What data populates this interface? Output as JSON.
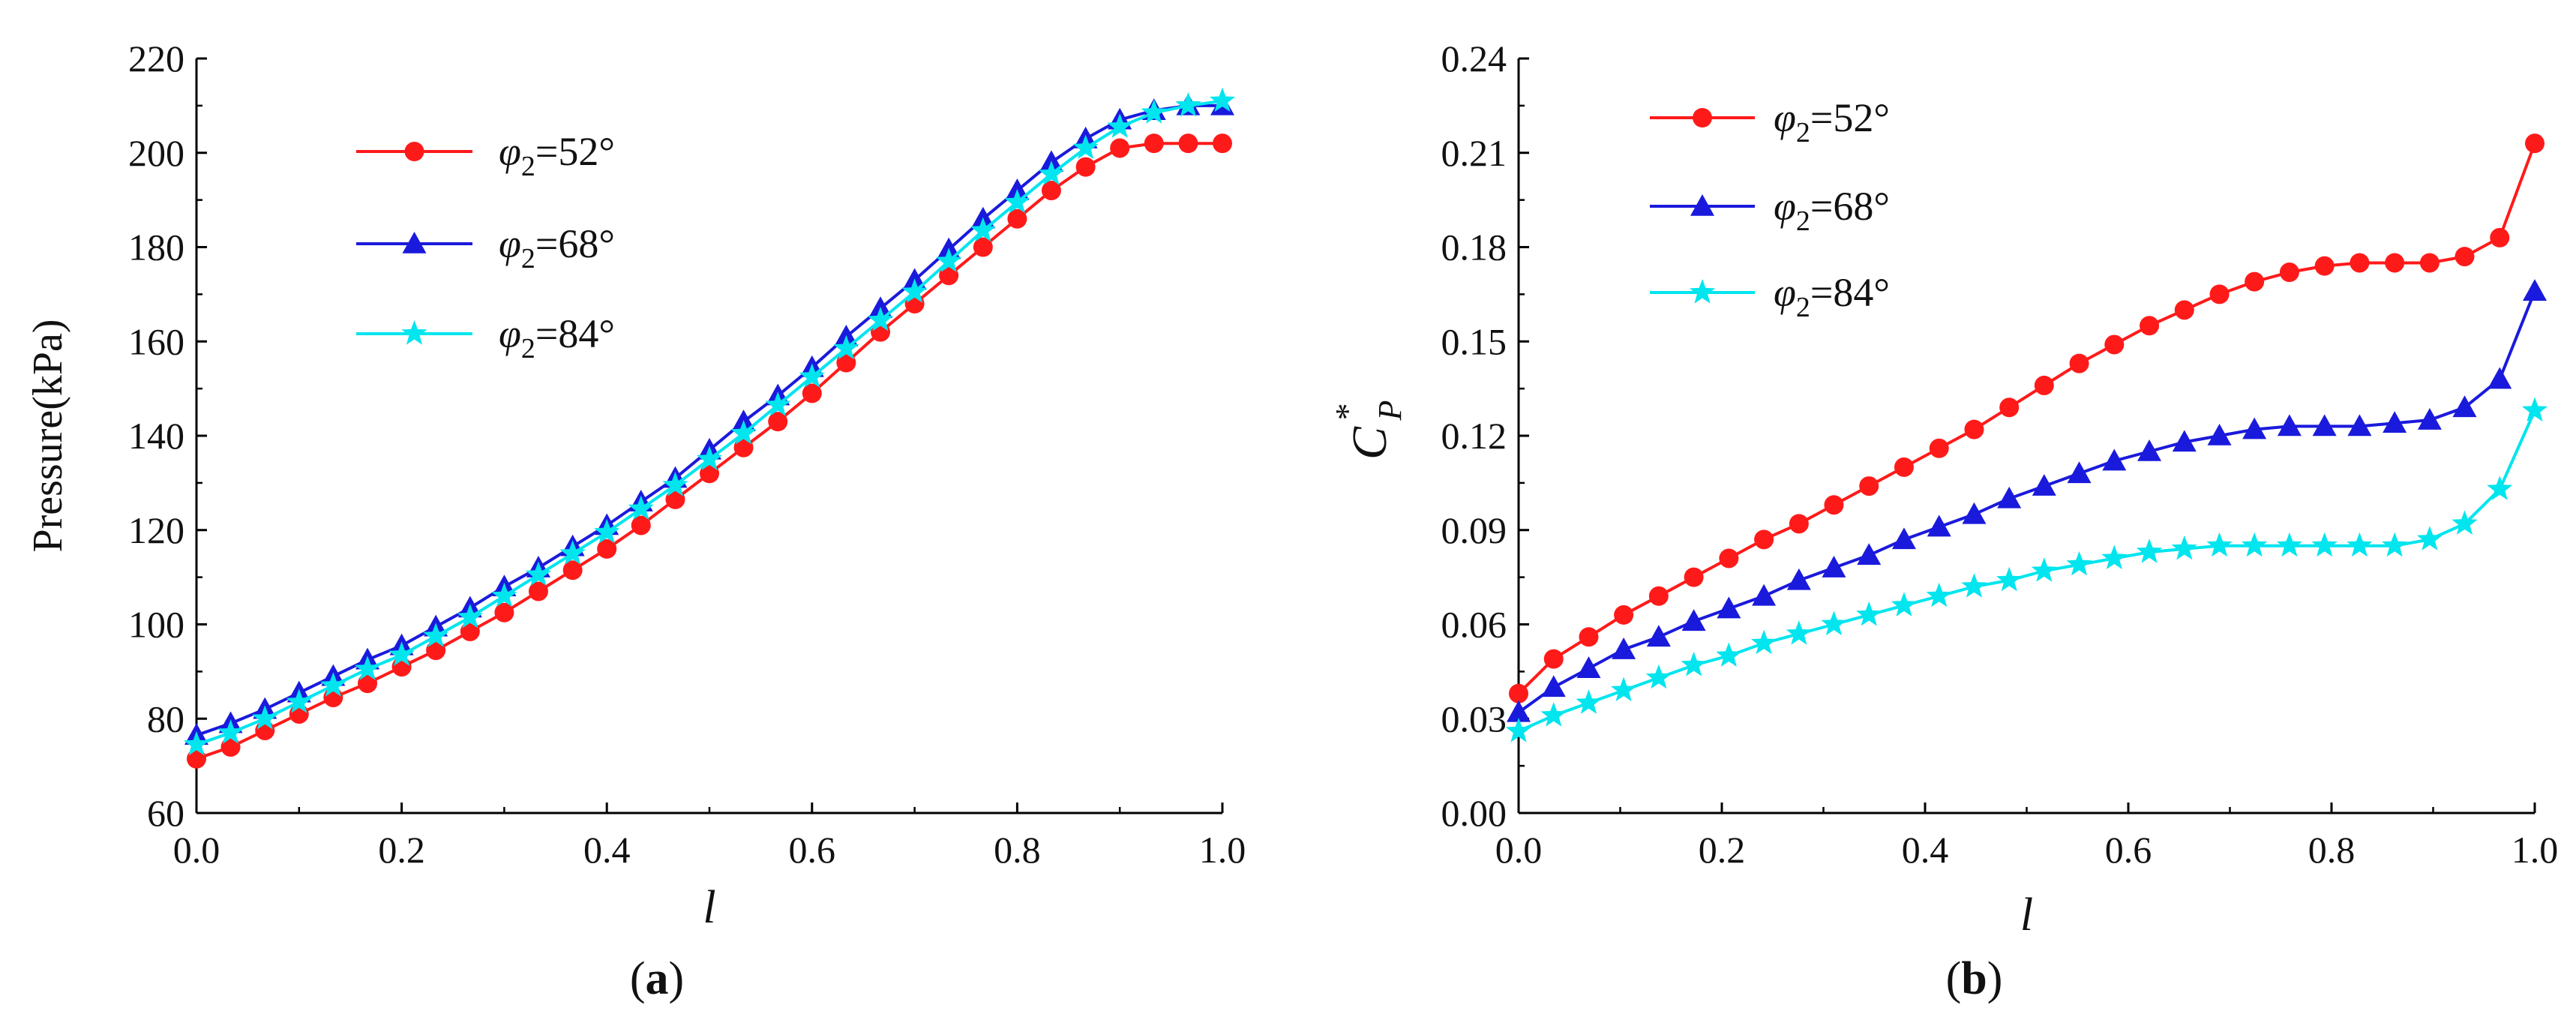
{
  "chart_data": [
    {
      "type": "line",
      "panel_label": "(a)",
      "panel_letter": "a",
      "xlabel": "l",
      "ylabel": "Pressure(kPa)",
      "xlim": [
        0.0,
        1.0
      ],
      "ylim": [
        60,
        220
      ],
      "xticks": [
        "0.0",
        "0.2",
        "0.4",
        "0.6",
        "0.8",
        "1.0"
      ],
      "yticks": [
        "60",
        "80",
        "100",
        "120",
        "140",
        "160",
        "180",
        "200",
        "220"
      ],
      "legend_position": "top-left",
      "series": [
        {
          "name": "φ2=52°",
          "sym": "φ",
          "sub": "2",
          "val": "=52°",
          "color": "#ff1a1a",
          "marker": "circle",
          "x": [
            0.0,
            0.0333,
            0.0667,
            0.1,
            0.1333,
            0.1667,
            0.2,
            0.2333,
            0.2667,
            0.3,
            0.3333,
            0.3667,
            0.4,
            0.4333,
            0.4667,
            0.5,
            0.5333,
            0.5667,
            0.6,
            0.6333,
            0.6667,
            0.7,
            0.7333,
            0.7667,
            0.8,
            0.8333,
            0.8667,
            0.9,
            0.9333,
            0.9667,
            1.0
          ],
          "values": [
            71.5,
            74,
            77.5,
            81,
            84.5,
            87.5,
            91,
            94.5,
            98.5,
            102.5,
            107,
            111.5,
            116,
            121,
            126.5,
            132,
            137.5,
            143,
            149,
            155.5,
            162,
            168,
            174,
            180,
            186,
            192,
            197,
            201,
            202,
            202,
            202
          ]
        },
        {
          "name": "φ2=68°",
          "sym": "φ",
          "sub": "2",
          "val": "=68°",
          "color": "#1a1adc",
          "marker": "triangle",
          "x": [
            0.0,
            0.0333,
            0.0667,
            0.1,
            0.1333,
            0.1667,
            0.2,
            0.2333,
            0.2667,
            0.3,
            0.3333,
            0.3667,
            0.4,
            0.4333,
            0.4667,
            0.5,
            0.5333,
            0.5667,
            0.6,
            0.6333,
            0.6667,
            0.7,
            0.7333,
            0.7667,
            0.8,
            0.8333,
            0.8667,
            0.9,
            0.9333,
            0.9667,
            1.0
          ],
          "values": [
            76.5,
            79,
            82,
            85.5,
            89,
            92.5,
            95.5,
            99.5,
            103.5,
            108,
            112,
            116.5,
            121,
            126,
            131,
            137,
            143,
            148.5,
            154.5,
            161,
            167,
            173,
            179.5,
            186,
            192,
            198,
            203,
            207,
            209,
            210,
            210
          ]
        },
        {
          "name": "φ2=84°",
          "sym": "φ",
          "sub": "2",
          "val": "=84°",
          "color": "#00e5ee",
          "marker": "star",
          "x": [
            0.0,
            0.0333,
            0.0667,
            0.1,
            0.1333,
            0.1667,
            0.2,
            0.2333,
            0.2667,
            0.3,
            0.3333,
            0.3667,
            0.4,
            0.4333,
            0.4667,
            0.5,
            0.5333,
            0.5667,
            0.6,
            0.6333,
            0.6667,
            0.7,
            0.7333,
            0.7667,
            0.8,
            0.8333,
            0.8667,
            0.9,
            0.9333,
            0.9667,
            1.0
          ],
          "values": [
            74.5,
            77,
            80,
            83.5,
            87,
            90.5,
            93.5,
            97.5,
            101.5,
            106,
            110.5,
            115,
            119.5,
            124.5,
            129.5,
            135,
            140.5,
            146.5,
            152.5,
            158.5,
            164.5,
            170.5,
            177,
            183.5,
            189.5,
            195.5,
            201,
            205.5,
            208.5,
            210,
            211
          ]
        }
      ]
    },
    {
      "type": "line",
      "panel_label": "(b)",
      "panel_letter": "b",
      "xlabel": "l",
      "ylabel": "C*P",
      "ylabel_main": "C",
      "ylabel_sup": "*",
      "ylabel_sub": "P",
      "xlim": [
        0.0,
        1.0
      ],
      "ylim": [
        0.0,
        0.24
      ],
      "xticks": [
        "0.0",
        "0.2",
        "0.4",
        "0.6",
        "0.8",
        "1.0"
      ],
      "yticks": [
        "0.00",
        "0.03",
        "0.06",
        "0.09",
        "0.12",
        "0.15",
        "0.18",
        "0.21",
        "0.24"
      ],
      "legend_position": "top-left",
      "series": [
        {
          "name": "φ2=52°",
          "sym": "φ",
          "sub": "2",
          "val": "=52°",
          "color": "#ff1a1a",
          "marker": "circle",
          "x": [
            0.0,
            0.0345,
            0.069,
            0.1034,
            0.1379,
            0.1724,
            0.2069,
            0.2414,
            0.2759,
            0.3103,
            0.3448,
            0.3793,
            0.4138,
            0.4483,
            0.4828,
            0.5172,
            0.5517,
            0.5862,
            0.6207,
            0.6552,
            0.6897,
            0.7241,
            0.7586,
            0.7931,
            0.8276,
            0.8621,
            0.8966,
            0.931,
            0.9655,
            1.0
          ],
          "values": [
            0.038,
            0.049,
            0.056,
            0.063,
            0.069,
            0.075,
            0.081,
            0.087,
            0.092,
            0.098,
            0.104,
            0.11,
            0.116,
            0.122,
            0.129,
            0.136,
            0.143,
            0.149,
            0.155,
            0.16,
            0.165,
            0.169,
            0.172,
            0.174,
            0.175,
            0.175,
            0.175,
            0.177,
            0.183,
            0.213
          ]
        },
        {
          "name": "φ2=68°",
          "sym": "φ",
          "sub": "2",
          "val": "=68°",
          "color": "#1a1adc",
          "marker": "triangle",
          "x": [
            0.0,
            0.0345,
            0.069,
            0.1034,
            0.1379,
            0.1724,
            0.2069,
            0.2414,
            0.2759,
            0.3103,
            0.3448,
            0.3793,
            0.4138,
            0.4483,
            0.4828,
            0.5172,
            0.5517,
            0.5862,
            0.6207,
            0.6552,
            0.6897,
            0.7241,
            0.7586,
            0.7931,
            0.8276,
            0.8621,
            0.8966,
            0.931,
            0.9655,
            1.0
          ],
          "values": [
            0.032,
            0.04,
            0.046,
            0.052,
            0.056,
            0.061,
            0.065,
            0.069,
            0.074,
            0.078,
            0.082,
            0.087,
            0.091,
            0.095,
            0.1,
            0.104,
            0.108,
            0.112,
            0.115,
            0.118,
            0.12,
            0.122,
            0.123,
            0.123,
            0.123,
            0.124,
            0.125,
            0.129,
            0.138,
            0.166
          ]
        },
        {
          "name": "φ2=84°",
          "sym": "φ",
          "sub": "2",
          "val": "=84°",
          "color": "#00e5ee",
          "marker": "star",
          "x": [
            0.0,
            0.0345,
            0.069,
            0.1034,
            0.1379,
            0.1724,
            0.2069,
            0.2414,
            0.2759,
            0.3103,
            0.3448,
            0.3793,
            0.4138,
            0.4483,
            0.4828,
            0.5172,
            0.5517,
            0.5862,
            0.6207,
            0.6552,
            0.6897,
            0.7241,
            0.7586,
            0.7931,
            0.8276,
            0.8621,
            0.8966,
            0.931,
            0.9655,
            1.0
          ],
          "values": [
            0.026,
            0.031,
            0.035,
            0.039,
            0.043,
            0.047,
            0.05,
            0.054,
            0.057,
            0.06,
            0.063,
            0.066,
            0.069,
            0.072,
            0.074,
            0.077,
            0.079,
            0.081,
            0.083,
            0.084,
            0.085,
            0.085,
            0.085,
            0.085,
            0.085,
            0.085,
            0.087,
            0.092,
            0.103,
            0.128
          ]
        }
      ]
    }
  ]
}
